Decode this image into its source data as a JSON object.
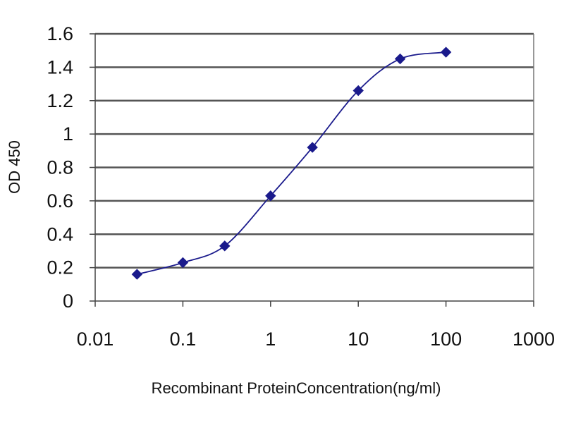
{
  "chart_data": {
    "type": "scatter",
    "title": "",
    "xlabel": "Recombinant ProteinConcentration(ng/ml)",
    "ylabel": "OD 450",
    "x_scale": "log",
    "xlim": [
      0.01,
      1000
    ],
    "ylim": [
      0,
      1.6
    ],
    "x_ticks": [
      "0.01",
      "0.1",
      "1",
      "10",
      "100",
      "1000"
    ],
    "y_ticks": [
      "0",
      "0.2",
      "0.4",
      "0.6",
      "0.8",
      "1",
      "1.2",
      "1.4",
      "1.6"
    ],
    "grid": true,
    "series": [
      {
        "x": [
          0.03,
          0.1,
          0.3,
          1,
          3,
          10,
          30,
          100
        ],
        "y": [
          0.16,
          0.23,
          0.33,
          0.63,
          0.92,
          1.26,
          1.45,
          1.49
        ],
        "color": "#1a1a8c",
        "marker": "diamond"
      }
    ]
  }
}
